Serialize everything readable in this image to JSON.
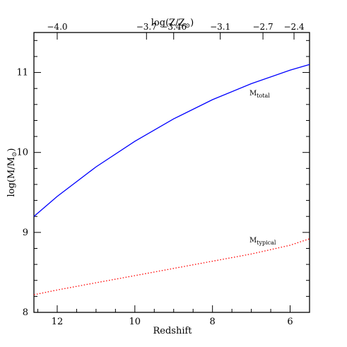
{
  "chart_data": {
    "type": "line",
    "xlabel": "Redshift",
    "ylabel": "log(M/M",
    "ylabel_subscript": "⊙",
    "ylabel_suffix": ")",
    "top_axis_label": "log(Z/Z",
    "top_axis_label_subscript": "⊙",
    "top_axis_label_suffix": ")",
    "xlim": [
      12.6,
      5.5
    ],
    "ylim": [
      8,
      11.5
    ],
    "x_ticks_major": [
      12,
      10,
      8,
      6
    ],
    "x_tick_labels": [
      "12",
      "10",
      "8",
      "6"
    ],
    "y_ticks_major": [
      8,
      9,
      10,
      11
    ],
    "y_tick_labels": [
      "8",
      "9",
      "10",
      "11"
    ],
    "top_ticks": [
      {
        "x": 12.0,
        "label": "−4.0"
      },
      {
        "x": 9.7,
        "label": "−3.7"
      },
      {
        "x": 9.0,
        "label": "−3.46"
      },
      {
        "x": 7.8,
        "label": "−3.1"
      },
      {
        "x": 6.7,
        "label": "−2.7"
      },
      {
        "x": 5.9,
        "label": "−2.4"
      }
    ],
    "series": [
      {
        "name": "M",
        "name_subscript": "total",
        "color": "#0000ff",
        "style": "solid",
        "x": [
          12.6,
          12.0,
          11.0,
          10.0,
          9.0,
          8.0,
          7.0,
          6.0,
          5.5
        ],
        "y": [
          9.2,
          9.45,
          9.82,
          10.14,
          10.42,
          10.66,
          10.86,
          11.03,
          11.1
        ]
      },
      {
        "name": "M",
        "name_subscript": "typical",
        "color": "#ff0000",
        "style": "dotted",
        "x": [
          12.6,
          12.0,
          11.0,
          10.0,
          9.0,
          8.0,
          7.0,
          6.0,
          5.5
        ],
        "y": [
          8.22,
          8.28,
          8.37,
          8.46,
          8.55,
          8.64,
          8.73,
          8.84,
          8.92
        ]
      }
    ]
  }
}
